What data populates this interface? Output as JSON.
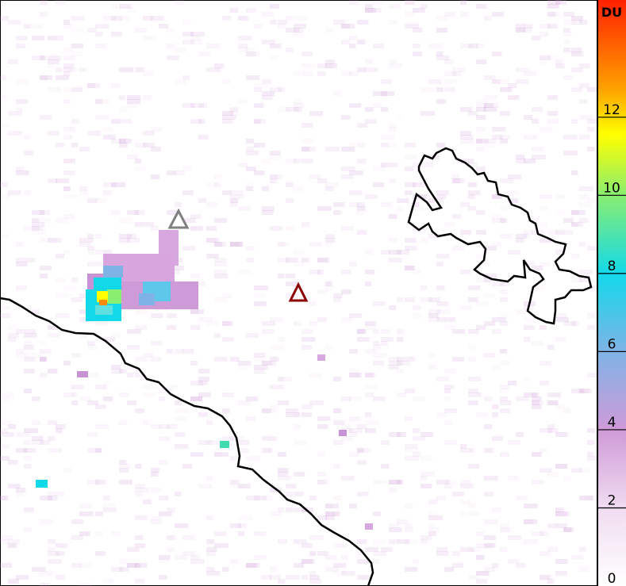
{
  "colorbar": {
    "unit": "DU",
    "min": 0,
    "max": 15,
    "ticks": [
      "0",
      "2",
      "4",
      "6",
      "8",
      "10",
      "12"
    ],
    "tick_values": [
      0,
      2,
      4,
      6,
      8,
      10,
      12
    ],
    "colors": [
      "#ffffff",
      "#f0dcf0",
      "#cf9ad8",
      "#7fb3e6",
      "#12d9ea",
      "#8aee70",
      "#ffff00",
      "#ffa000",
      "#ff2000"
    ]
  },
  "markers": [
    {
      "name": "volcano-gray",
      "color": "#808080"
    },
    {
      "name": "volcano-red",
      "color": "#8b0000"
    }
  ]
}
